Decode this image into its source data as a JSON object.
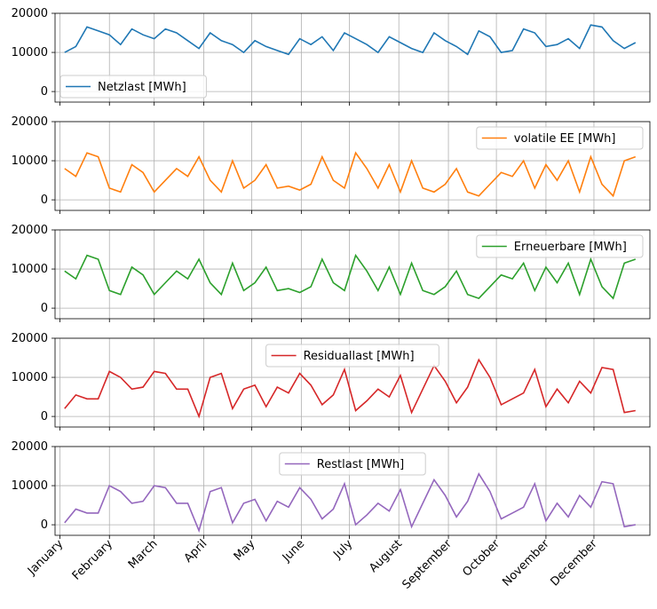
{
  "chart_data": [
    {
      "type": "line",
      "name": "Netzlast [MWh]",
      "color": "#1f77b4",
      "legend": "lower-left",
      "ylim": [
        -2700,
        20000
      ],
      "yticks": [
        0,
        10000,
        20000
      ],
      "values": [
        10000,
        11500,
        16500,
        15500,
        14500,
        12000,
        16000,
        14500,
        13500,
        16000,
        15000,
        13000,
        11000,
        15000,
        13000,
        12000,
        10000,
        13000,
        11500,
        10500,
        9500,
        13500,
        12000,
        14000,
        10500,
        15000,
        13500,
        12000,
        10000,
        14000,
        12500,
        11000,
        10000,
        15000,
        13000,
        11500,
        9500,
        15500,
        14000,
        10000,
        10500,
        16000,
        15000,
        11500,
        12000,
        13500,
        11000,
        17000,
        16500,
        13000,
        11000,
        12500
      ]
    },
    {
      "type": "line",
      "name": "volatile EE [MWh]",
      "color": "#ff7f0e",
      "legend": "upper-right",
      "ylim": [
        -2700,
        20000
      ],
      "yticks": [
        0,
        10000,
        20000
      ],
      "values": [
        8000,
        6000,
        12000,
        11000,
        3000,
        2000,
        9000,
        7000,
        2000,
        5000,
        8000,
        6000,
        11000,
        5000,
        2000,
        10000,
        3000,
        5000,
        9000,
        3000,
        3500,
        2500,
        4000,
        11000,
        5000,
        3000,
        12000,
        8000,
        3000,
        9000,
        2000,
        10000,
        3000,
        2000,
        4000,
        8000,
        2000,
        1000,
        4000,
        7000,
        6000,
        10000,
        3000,
        9000,
        5000,
        10000,
        2000,
        11000,
        4000,
        1000,
        10000,
        11000
      ]
    },
    {
      "type": "line",
      "name": "Erneuerbare [MWh]",
      "color": "#2ca02c",
      "legend": "upper-right",
      "ylim": [
        -2700,
        20000
      ],
      "yticks": [
        0,
        10000,
        20000
      ],
      "values": [
        9500,
        7500,
        13500,
        12500,
        4500,
        3500,
        10500,
        8500,
        3500,
        6500,
        9500,
        7500,
        12500,
        6500,
        3500,
        11500,
        4500,
        6500,
        10500,
        4500,
        5000,
        4000,
        5500,
        12500,
        6500,
        4500,
        13500,
        9500,
        4500,
        10500,
        3500,
        11500,
        4500,
        3500,
        5500,
        9500,
        3500,
        2500,
        5500,
        8500,
        7500,
        11500,
        4500,
        10500,
        6500,
        11500,
        3500,
        12500,
        5500,
        2500,
        11500,
        12500
      ]
    },
    {
      "type": "line",
      "name": "Residuallast [MWh]",
      "color": "#d62728",
      "legend": "upper-center",
      "ylim": [
        -2700,
        20000
      ],
      "yticks": [
        0,
        10000,
        20000
      ],
      "values": [
        2000,
        5500,
        4500,
        4500,
        11500,
        10000,
        7000,
        7500,
        11500,
        11000,
        7000,
        7000,
        0,
        10000,
        11000,
        2000,
        7000,
        8000,
        2500,
        7500,
        6000,
        11000,
        8000,
        3000,
        5500,
        12000,
        1500,
        4000,
        7000,
        5000,
        10500,
        1000,
        7000,
        13000,
        9000,
        3500,
        7500,
        14500,
        10000,
        3000,
        4500,
        6000,
        12000,
        2500,
        7000,
        3500,
        9000,
        6000,
        12500,
        12000,
        1000,
        1500
      ]
    },
    {
      "type": "line",
      "name": "Restlast [MWh]",
      "color": "#9467bd",
      "legend": "upper-center",
      "ylim": [
        -2700,
        20000
      ],
      "yticks": [
        0,
        10000,
        20000
      ],
      "values": [
        500,
        4000,
        3000,
        3000,
        10000,
        8500,
        5500,
        6000,
        10000,
        9500,
        5500,
        5500,
        -1500,
        8500,
        9500,
        500,
        5500,
        6500,
        1000,
        6000,
        4500,
        9500,
        6500,
        1500,
        4000,
        10500,
        0,
        2500,
        5500,
        3500,
        9000,
        -500,
        5500,
        11500,
        7500,
        2000,
        6000,
        13000,
        8500,
        1500,
        3000,
        4500,
        10500,
        1000,
        5500,
        2000,
        7500,
        4500,
        11000,
        10500,
        -500,
        0
      ]
    }
  ],
  "x": {
    "start_day_of_year": 3,
    "step_days": 7,
    "xlim_days": [
      -3,
      369
    ],
    "month_labels": [
      "January",
      "February",
      "March",
      "April",
      "May",
      "June",
      "July",
      "August",
      "September",
      "October",
      "November",
      "December"
    ],
    "month_start_days": [
      0,
      31,
      59,
      90,
      120,
      151,
      181,
      212,
      243,
      273,
      304,
      334
    ]
  }
}
